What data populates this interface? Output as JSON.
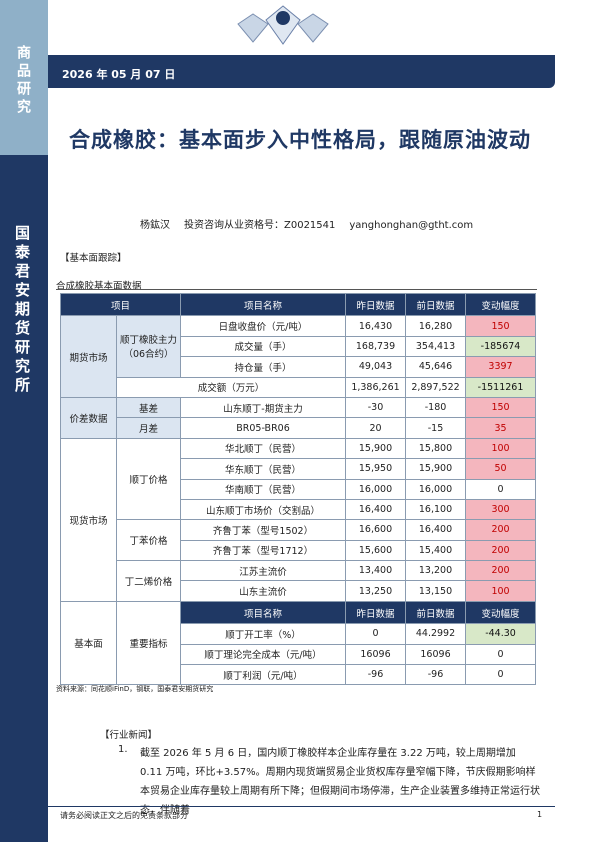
{
  "sidebar": {
    "top": "商品研究",
    "bottom": "国泰君安期货研究所"
  },
  "header": {
    "date": "2026 年 05 月 07 日"
  },
  "title": "合成橡胶：基本面步入中性格局，跟随原油波动",
  "author": {
    "name": "杨鈜汉",
    "license": "投资咨询从业资格号：Z0021541",
    "email": "yanghonghan@gtht.com"
  },
  "section1": "【基本面跟踪】",
  "table_title": "合成橡胶基本面数据",
  "table": {
    "header": [
      "项目",
      "项目名称",
      "昨日数据",
      "前日数据",
      "变动幅度"
    ],
    "groups": [
      "期货市场",
      "价差数据",
      "现货市场",
      "基本面"
    ],
    "subgroups": [
      "顺丁橡胶主力（06合约）",
      "基差",
      "月差",
      "顺丁价格",
      "丁苯价格",
      "丁二烯价格",
      "重要指标"
    ],
    "subheader": [
      "项目名称",
      "昨日数据",
      "前日数据",
      "变动幅度"
    ],
    "rows": [
      [
        "日盘收盘价（元/吨）",
        "16,430",
        "16,280",
        "150"
      ],
      [
        "成交量（手）",
        "168,739",
        "354,413",
        "-185674"
      ],
      [
        "持仓量（手）",
        "49,043",
        "45,646",
        "3397"
      ],
      [
        "成交额（万元）",
        "1,386,261",
        "2,897,522",
        "-1511261"
      ],
      [
        "山东顺丁-期货主力",
        "-30",
        "-180",
        "150"
      ],
      [
        "BR05-BR06",
        "20",
        "-15",
        "35"
      ],
      [
        "华北顺丁（民营）",
        "15,900",
        "15,800",
        "100"
      ],
      [
        "华东顺丁（民营）",
        "15,950",
        "15,900",
        "50"
      ],
      [
        "华南顺丁（民营）",
        "16,000",
        "16,000",
        "0"
      ],
      [
        "山东顺丁市场价（交割品）",
        "16,400",
        "16,100",
        "300"
      ],
      [
        "齐鲁丁苯（型号1502）",
        "16,600",
        "16,400",
        "200"
      ],
      [
        "齐鲁丁苯（型号1712）",
        "15,600",
        "15,400",
        "200"
      ],
      [
        "江苏主流价",
        "13,400",
        "13,200",
        "200"
      ],
      [
        "山东主流价",
        "13,250",
        "13,150",
        "100"
      ],
      [
        "顺丁开工率（%）",
        "0",
        "44.2992",
        "-44.30"
      ],
      [
        "顺丁理论完全成本（元/吨）",
        "16096",
        "16096",
        "0"
      ],
      [
        "顺丁利润（元/吨）",
        "-96",
        "-96",
        "0"
      ]
    ]
  },
  "source": "资料来源：同花顺iFinD，钢联，国泰君安期货研究",
  "section2": "【行业新闻】",
  "news": [
    {
      "num": "1.",
      "text": "截至 2026 年 5 月 6 日，国内顺丁橡胶样本企业库存量在 3.22 万吨，较上周期增加 0.11 万吨，环比+3.57%。周期内现货端贸易企业货权库存量窄幅下降，节庆假期影响样本贸易企业库存量较上周期有所下降；但假期间市场停滞，生产企业装置多维持正常运行状态，伴随着"
    }
  ],
  "footer": {
    "disclaimer": "请务必阅读正文之后的免责条款部分",
    "page": "1"
  }
}
